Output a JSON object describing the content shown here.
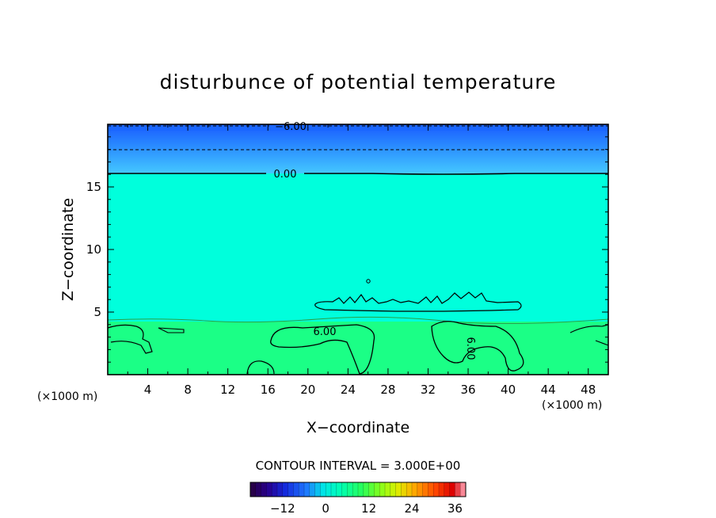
{
  "chart_data": {
    "type": "heatmap",
    "title": "disturbunce of potential temperature",
    "xlabel": "X−coordinate",
    "ylabel": "Z−coordinate",
    "x_unit": "(×1000 m)",
    "z_unit": "(×1000 m)",
    "xlim": [
      0,
      50
    ],
    "ylim": [
      0,
      20
    ],
    "x_ticks": [
      4,
      8,
      12,
      16,
      20,
      24,
      28,
      32,
      36,
      40,
      44,
      48
    ],
    "y_ticks": [
      5,
      10,
      15
    ],
    "contour_interval_text": "CONTOUR INTERVAL = 3.000E+00",
    "contour_interval": 3.0,
    "colorbar": {
      "range": [
        -21,
        39
      ],
      "tick_values": [
        -12,
        0,
        12,
        24,
        36
      ],
      "tick_labels": [
        "−12",
        "0",
        "12",
        "24",
        "36"
      ]
    },
    "contour_labels": [
      "−6.00",
      "0.00",
      "6.00",
      "6.00"
    ],
    "layers": [
      {
        "z_range": [
          16,
          20
        ],
        "value": "−6 to 0",
        "color": "#1e90ff"
      },
      {
        "z_range": [
          4.5,
          16
        ],
        "value": "0 to 3",
        "color": "#00ffe0"
      },
      {
        "z_range": [
          0,
          4.5
        ],
        "value": "3 to 9",
        "color": "#1aff80"
      }
    ],
    "colors": {
      "upper_band_dark": "#1a66ff",
      "upper_band_light": "#38b0ff",
      "middle": "#00ffdc",
      "lower": "#1bff86"
    }
  }
}
